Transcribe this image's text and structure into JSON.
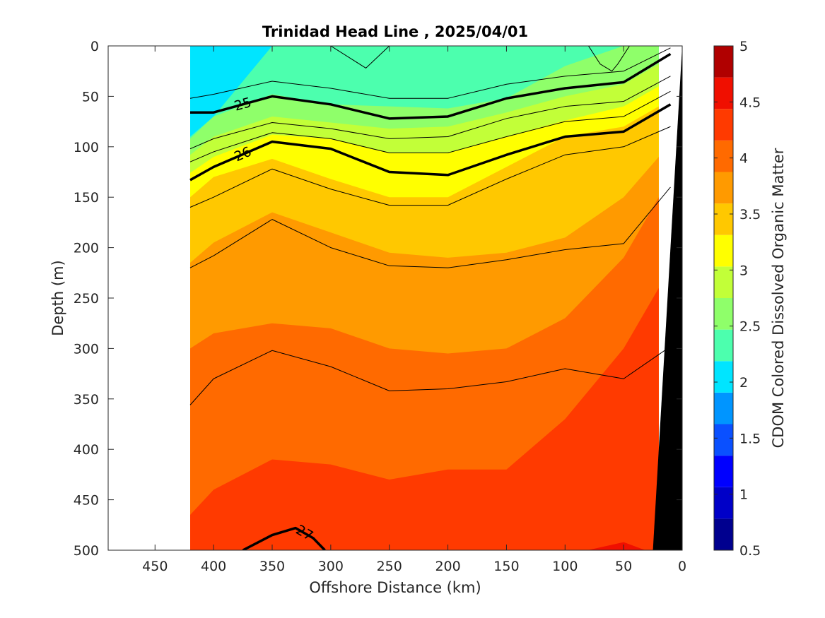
{
  "chart_data": {
    "type": "heatmap",
    "title": "Trinidad Head Line , 2025/04/01",
    "xlabel": "Offshore Distance (km)",
    "ylabel": "Depth (m)",
    "colorbar_label": "CDOM Colored Dissolved Organic Matter",
    "xlim": [
      490,
      0
    ],
    "ylim": [
      0,
      500
    ],
    "x_reversed": true,
    "y_reversed": true,
    "x_ticks": [
      450,
      400,
      350,
      300,
      250,
      200,
      150,
      100,
      50,
      0
    ],
    "x_tick_labels": [
      "450",
      "400",
      "350",
      "300",
      "250",
      "200",
      "150",
      "100",
      "50",
      "0"
    ],
    "y_ticks": [
      0,
      50,
      100,
      150,
      200,
      250,
      300,
      350,
      400,
      450,
      500
    ],
    "y_tick_labels": [
      "0",
      "50",
      "100",
      "150",
      "200",
      "250",
      "300",
      "350",
      "400",
      "450",
      "500"
    ],
    "colorbar_range": [
      0.5,
      5
    ],
    "colorbar_ticks": [
      0.5,
      1,
      1.5,
      2,
      2.5,
      3,
      3.5,
      4,
      4.5,
      5
    ],
    "colorbar_tick_labels": [
      "0.5",
      "1",
      "1.5",
      "2",
      "2.5",
      "3",
      "3.5",
      "4",
      "4.5",
      "5"
    ],
    "colorbar_levels": [
      "#00008F",
      "#0000C8",
      "#0000FF",
      "#0A50FF",
      "#0095FF",
      "#00E5FF",
      "#4CFFAE",
      "#8FFF6A",
      "#C2FF38",
      "#FFFF00",
      "#FFC800",
      "#FF9A00",
      "#FF6A00",
      "#FF3A00",
      "#F00F00",
      "#B00000"
    ],
    "data_x_range": [
      420,
      0
    ],
    "band_x": [
      420,
      400,
      350,
      300,
      250,
      200,
      150,
      100,
      50,
      20
    ],
    "color_bands": [
      {
        "level": 2.5,
        "color": "#00E5FF",
        "top_depth": [
          0,
          0,
          0,
          0,
          0,
          0,
          0,
          0,
          0,
          0
        ]
      },
      {
        "level": 2.75,
        "color": "#4CFFAE",
        "top_depth": [
          90,
          70,
          0,
          0,
          0,
          0,
          0,
          0,
          0,
          0
        ]
      },
      {
        "level": 3.0,
        "color": "#8FFF6A",
        "top_depth": [
          92,
          70,
          48,
          58,
          60,
          62,
          52,
          20,
          0,
          0
        ]
      },
      {
        "level": 3.25,
        "color": "#C2FF38",
        "top_depth": [
          108,
          90,
          70,
          76,
          82,
          80,
          66,
          50,
          38,
          18
        ]
      },
      {
        "level": 3.5,
        "color": "#FFFF00",
        "top_depth": [
          126,
          110,
          88,
          92,
          106,
          106,
          90,
          74,
          60,
          40
        ]
      },
      {
        "level": 3.75,
        "color": "#FFC800",
        "top_depth": [
          150,
          130,
          112,
          132,
          150,
          150,
          120,
          90,
          80,
          60
        ]
      },
      {
        "level": 4.0,
        "color": "#FF9A00",
        "top_depth": [
          215,
          195,
          165,
          185,
          205,
          210,
          205,
          190,
          150,
          110
        ]
      },
      {
        "level": 4.25,
        "color": "#FF6A00",
        "top_depth": [
          300,
          285,
          275,
          280,
          300,
          305,
          300,
          270,
          210,
          150
        ]
      },
      {
        "level": 4.5,
        "color": "#FF3A00",
        "top_depth": [
          465,
          440,
          410,
          415,
          430,
          420,
          420,
          370,
          300,
          240
        ]
      },
      {
        "level": 4.75,
        "color": "#F00F00",
        "top_depth": [
          505,
          505,
          505,
          505,
          505,
          505,
          505,
          505,
          492,
          505
        ]
      }
    ],
    "contours": [
      {
        "level": 25,
        "label": "25",
        "bold": true,
        "x": [
          420,
          400,
          350,
          300,
          250,
          200,
          150,
          100,
          50,
          10
        ],
        "depth": [
          66,
          66,
          50,
          58,
          72,
          70,
          52,
          42,
          36,
          8
        ]
      },
      {
        "level": 26,
        "label": "26",
        "bold": true,
        "x": [
          420,
          400,
          350,
          300,
          250,
          200,
          150,
          100,
          50,
          10
        ],
        "depth": [
          133,
          120,
          95,
          102,
          125,
          128,
          108,
          90,
          85,
          58
        ]
      },
      {
        "level": 27,
        "label": "27",
        "bold": true,
        "x": [
          375,
          350,
          330,
          315,
          305
        ],
        "depth": [
          500,
          485,
          478,
          488,
          500
        ]
      },
      {
        "level": 25.5,
        "label": "",
        "bold": false,
        "x": [
          420,
          400,
          350,
          300,
          250,
          200,
          150,
          100,
          50,
          10
        ],
        "depth": [
          102,
          92,
          76,
          82,
          92,
          90,
          72,
          60,
          55,
          30
        ]
      },
      {
        "level": 25.75,
        "label": "",
        "bold": false,
        "x": [
          420,
          400,
          350,
          300,
          250,
          200,
          150,
          100,
          50,
          10
        ],
        "depth": [
          115,
          105,
          86,
          92,
          106,
          106,
          90,
          75,
          70,
          45
        ]
      },
      {
        "level": 26.25,
        "label": "",
        "bold": false,
        "x": [
          420,
          400,
          350,
          300,
          250,
          200,
          150,
          100,
          50,
          10
        ],
        "depth": [
          160,
          150,
          122,
          142,
          158,
          158,
          132,
          108,
          100,
          80
        ]
      },
      {
        "level": 26.5,
        "label": "",
        "bold": false,
        "x": [
          420,
          400,
          350,
          300,
          250,
          200,
          150,
          100,
          50,
          10
        ],
        "depth": [
          220,
          208,
          172,
          200,
          218,
          220,
          212,
          202,
          196,
          140
        ]
      },
      {
        "level": 26.75,
        "label": "",
        "bold": false,
        "x": [
          420,
          400,
          350,
          300,
          250,
          200,
          150,
          100,
          50,
          10
        ],
        "depth": [
          356,
          330,
          302,
          318,
          342,
          340,
          333,
          320,
          330,
          298
        ]
      },
      {
        "level": 24.75,
        "label": "",
        "bold": false,
        "x": [
          420,
          400,
          350,
          300,
          250,
          200,
          150,
          100,
          50,
          10
        ],
        "depth": [
          52,
          48,
          35,
          42,
          52,
          52,
          38,
          30,
          25,
          2
        ]
      },
      {
        "level": 24.5,
        "label": "",
        "bold": false,
        "x": [
          300,
          270,
          250
        ],
        "depth": [
          0,
          22,
          0
        ]
      },
      {
        "level": 24.25,
        "label": "",
        "bold": false,
        "x": [
          80,
          70,
          60,
          55,
          45
        ],
        "depth": [
          0,
          18,
          25,
          18,
          0
        ]
      }
    ],
    "bathymetry": {
      "color": "#000000",
      "x": [
        0,
        25,
        0
      ],
      "depth": [
        0,
        500,
        500
      ]
    },
    "grid": false,
    "legend": "colorbar-right"
  }
}
